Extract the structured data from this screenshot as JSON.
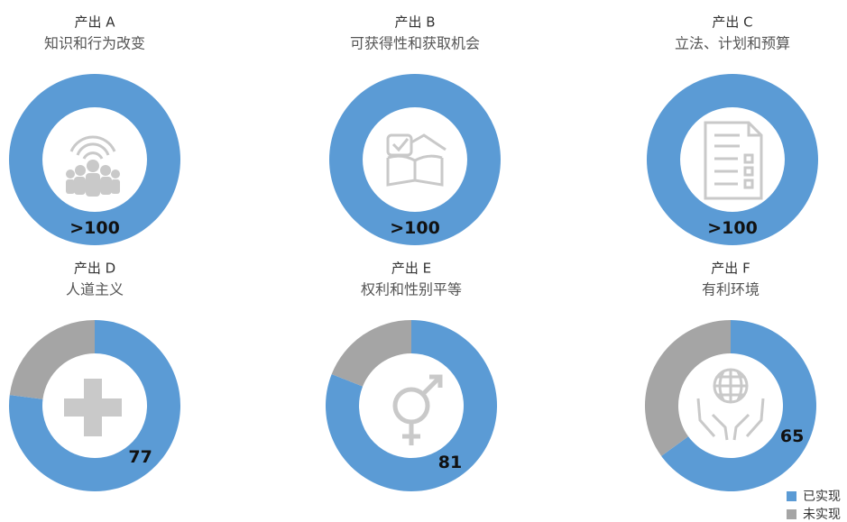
{
  "chart_data": [
    {
      "type": "pie",
      "title": "产出 A",
      "subtitle": "知识和行为改变",
      "values": [
        100,
        0
      ],
      "value_labels": [
        ">100",
        null
      ]
    },
    {
      "type": "pie",
      "title": "产出 B",
      "subtitle": "可获得性和获取机会",
      "values": [
        100,
        0
      ],
      "value_labels": [
        ">100",
        null
      ]
    },
    {
      "type": "pie",
      "title": "产出 C",
      "subtitle": "立法、计划和预算",
      "values": [
        100,
        0
      ],
      "value_labels": [
        ">100",
        null
      ]
    },
    {
      "type": "pie",
      "title": "产出 D",
      "subtitle": "人道主义",
      "values": [
        77,
        23
      ]
    },
    {
      "type": "pie",
      "title": "产出 E",
      "subtitle": "权利和性别平等",
      "values": [
        81,
        19
      ]
    },
    {
      "type": "pie",
      "title": "产出 F",
      "subtitle": "有利环境",
      "values": [
        65,
        35
      ]
    }
  ],
  "legend": {
    "position": "bottom-right",
    "items": [
      {
        "name": "已实现",
        "color": "#5b9bd5"
      },
      {
        "name": "未实现",
        "color": "#a5a5a5"
      }
    ]
  }
}
